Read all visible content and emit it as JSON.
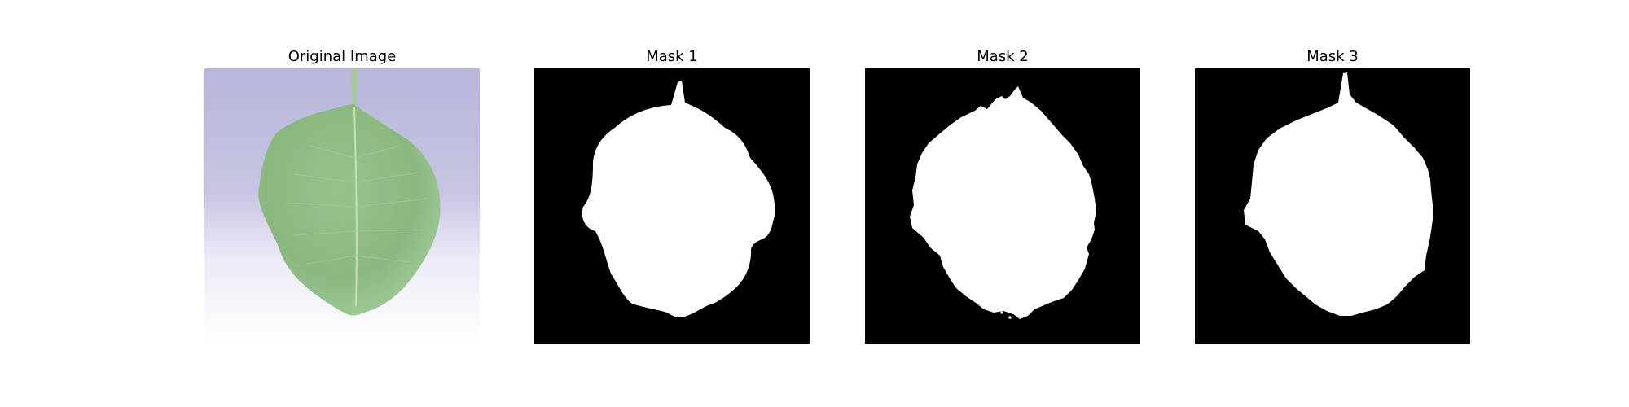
{
  "figure": {
    "panels": [
      {
        "title": "Original Image"
      },
      {
        "title": "Mask 1"
      },
      {
        "title": "Mask 2"
      },
      {
        "title": "Mask 3"
      }
    ]
  },
  "colors": {
    "background_original": "#b9b7d8",
    "leaf_green": "#8fbc83",
    "mask_background": "#000000",
    "mask_foreground": "#ffffff"
  }
}
